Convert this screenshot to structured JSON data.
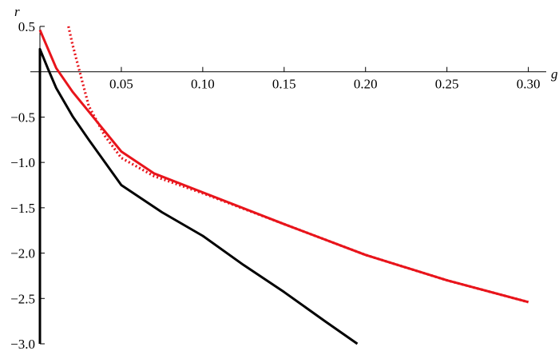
{
  "chart_data": {
    "type": "line",
    "x_label": "g",
    "y_label": "r",
    "xlim": [
      0,
      0.31
    ],
    "ylim": [
      -3,
      0.5
    ],
    "xticks": [
      0.05,
      {
        "value": 0.1,
        "label": "0.10"
      },
      0.15,
      {
        "value": 0.2,
        "label": "0.20"
      },
      0.25,
      {
        "value": 0.3,
        "label": "0.30"
      }
    ],
    "yticks": [
      0.5,
      {
        "value": -0.5,
        "label": "−0.5"
      },
      {
        "value": -1,
        "label": "−1.0"
      },
      {
        "value": -1.5,
        "label": "−1.5"
      },
      {
        "value": -2,
        "label": "−2.0"
      },
      {
        "value": -2.5,
        "label": "−2.5"
      },
      {
        "value": -3,
        "label": "−3.0"
      }
    ],
    "series": [
      {
        "color": "#000000",
        "dashed": false,
        "x": [
          0,
          0,
          0.005,
          0.01,
          0.02,
          0.03,
          0.05,
          0.075,
          0.1,
          0.125,
          0.15,
          0.175,
          0.195
        ],
        "values": [
          -3,
          0.25,
          0.03,
          -0.18,
          -0.49,
          -0.75,
          -1.25,
          -1.55,
          -1.81,
          -2.13,
          -2.43,
          -2.75,
          -3
        ]
      },
      {
        "color": "#e8141b",
        "dashed": false,
        "x": [
          0,
          0.01,
          0.02,
          0.03,
          0.05,
          0.07,
          0.1,
          0.15,
          0.2,
          0.25,
          0.3
        ],
        "values": [
          0.46,
          0.04,
          -0.22,
          -0.44,
          -0.88,
          -1.12,
          -1.33,
          -1.68,
          -2.02,
          -2.3,
          -2.54
        ]
      },
      {
        "color": "#e8141b",
        "dashed": true,
        "x": [
          0.0175,
          0.02,
          0.025,
          0.03,
          0.04,
          0.05,
          0.07,
          0.1,
          0.15,
          0.2,
          0.25,
          0.3
        ],
        "values": [
          0.5,
          0.3,
          -0.04,
          -0.38,
          -0.71,
          -0.95,
          -1.15,
          -1.34,
          -1.68,
          -2.02,
          -2.3,
          -2.54
        ]
      }
    ]
  }
}
